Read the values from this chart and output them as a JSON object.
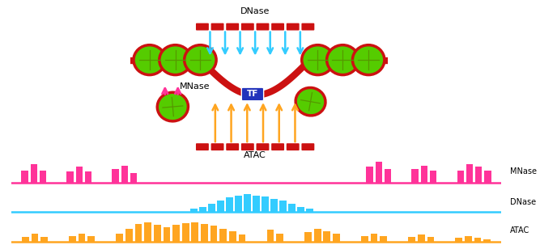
{
  "bg_color": "#ffffff",
  "mnase_color": "#FF3399",
  "dnase_color": "#33CCFF",
  "atac_color": "#FFA520",
  "nucleosome_fill": "#55CC00",
  "nucleosome_edge": "#CC1111",
  "dna_color": "#CC1111",
  "tf_color": "#2233BB",
  "tf_text": "TF",
  "dnase_label": "DNase",
  "atac_label": "ATAC",
  "mnase_label": "MNase",
  "label_fontsize": 8,
  "bar_label_fontsize": 7,
  "mnase_bars": [
    0,
    2.5,
    3.8,
    2.5,
    0,
    0,
    2.2,
    3.2,
    2.2,
    0,
    0,
    2.8,
    3.5,
    2.0,
    0,
    0,
    0,
    0,
    0,
    0,
    0,
    0,
    0,
    0,
    0,
    0,
    0,
    0,
    0,
    0,
    0,
    0,
    0,
    0,
    0,
    0,
    0,
    0,
    0,
    3.2,
    4.2,
    2.8,
    0,
    0,
    2.8,
    3.5,
    2.5,
    0,
    0,
    2.5,
    3.8,
    3.2,
    2.5,
    0
  ],
  "dnase_bars": [
    0,
    0,
    0,
    0,
    0,
    0,
    0,
    0,
    0,
    0,
    0,
    0,
    0,
    0,
    0,
    0,
    0,
    0,
    0,
    0,
    1,
    1.5,
    2.5,
    3.5,
    4.5,
    5.2,
    5.5,
    5.2,
    4.8,
    4.2,
    3.5,
    2.5,
    1.5,
    1,
    0,
    0,
    0,
    0,
    0,
    0,
    0,
    0,
    0,
    0,
    0,
    0,
    0,
    0,
    0,
    0,
    0,
    0,
    0,
    0,
    0
  ],
  "atac_bars": [
    0,
    1.2,
    2,
    1.2,
    0,
    0,
    1.5,
    2.2,
    1.5,
    0,
    0,
    2,
    3.5,
    4.8,
    5.2,
    4.5,
    3.8,
    4.5,
    5.0,
    5.2,
    4.8,
    4.2,
    3.5,
    2.8,
    1.8,
    0,
    0,
    3.2,
    2,
    0,
    0,
    2.5,
    3.5,
    2.8,
    2,
    0,
    0,
    1.5,
    2.2,
    1.5,
    0,
    0,
    1.2,
    1.8,
    1.2,
    0,
    0,
    1,
    1.5,
    1,
    0.5,
    0
  ]
}
